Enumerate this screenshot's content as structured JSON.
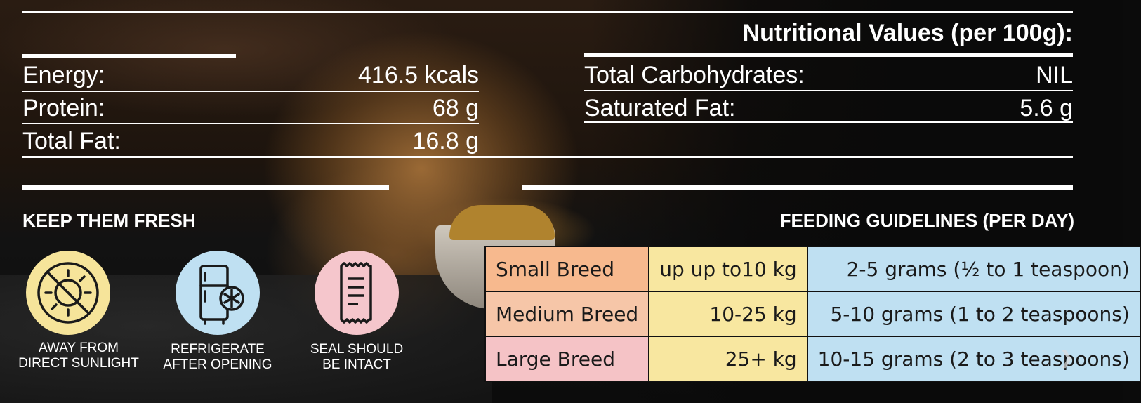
{
  "nutrition": {
    "title": "Nutritional Values (per 100g):",
    "left_rows": [
      {
        "label": "Energy:",
        "value": "416.5 kcals"
      },
      {
        "label": "Protein:",
        "value": "68 g"
      },
      {
        "label": "Total Fat:",
        "value": "16.8 g"
      }
    ],
    "right_rows": [
      {
        "label": "Total Carbohydrates:",
        "value": "NIL"
      },
      {
        "label": "Saturated Fat:",
        "value": "5.6 g"
      }
    ]
  },
  "fresh": {
    "title": "KEEP THEM FRESH",
    "items": [
      {
        "icon": "no-sun-icon",
        "line1": "AWAY FROM",
        "line2": "DIRECT SUNLIGHT",
        "color": "#f6e49a"
      },
      {
        "icon": "fridge-icon",
        "line1": "REFRIGERATE",
        "line2": "AFTER OPENING",
        "color": "#bfe0f2"
      },
      {
        "icon": "sealed-pack-icon",
        "line1": "SEAL SHOULD",
        "line2": "BE INTACT",
        "color": "#f5c6cc"
      }
    ]
  },
  "feeding": {
    "title": "FEEDING GUIDELINES (PER DAY)",
    "rows": [
      {
        "breed": "Small Breed",
        "weight": "up up to10 kg",
        "amount": "2-5 grams (½ to 1 teaspoon)",
        "color": "#f7b98e"
      },
      {
        "breed": "Medium Breed",
        "weight": "10-25 kg",
        "amount": "5-10 grams (1 to 2 teaspoons)",
        "color": "#f6c6a8"
      },
      {
        "breed": "Large Breed",
        "weight": "25+ kg",
        "amount": "10-15 grams (2 to 3 teaspoons)",
        "color": "#f5c3c6"
      }
    ]
  }
}
